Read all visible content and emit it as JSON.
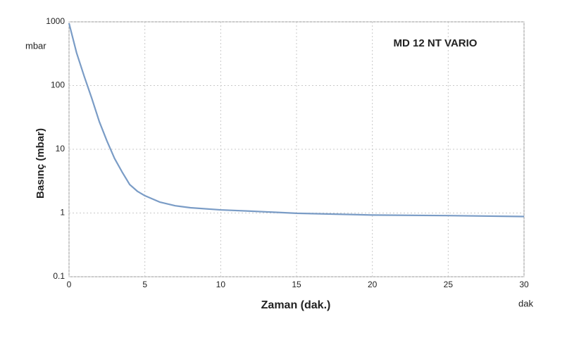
{
  "chart_data": {
    "type": "line",
    "title": "MD 12 NT VARIO",
    "x_label": "Zaman (dak.)",
    "y_label": "Basınç (mbar)",
    "annotations": [
      "mbar",
      "dak"
    ],
    "x": [
      0,
      0.5,
      1,
      1.5,
      2,
      2.5,
      3,
      3.5,
      4,
      4.5,
      5,
      6,
      7,
      8,
      10,
      12,
      15,
      20,
      25,
      30
    ],
    "values": [
      950,
      325,
      140,
      63,
      27,
      13.5,
      7.2,
      4.4,
      2.8,
      2.2,
      1.87,
      1.48,
      1.3,
      1.21,
      1.12,
      1.07,
      0.99,
      0.93,
      0.91,
      0.88
    ],
    "color": "#7a9cc6",
    "xlim": [
      0,
      30
    ],
    "xticks": [
      0,
      5,
      10,
      15,
      20,
      25,
      30
    ],
    "ylim": [
      0.1,
      1000
    ],
    "yticks": [
      0.1,
      1,
      10,
      100,
      1000
    ],
    "y_scale": "log",
    "grid": true
  }
}
